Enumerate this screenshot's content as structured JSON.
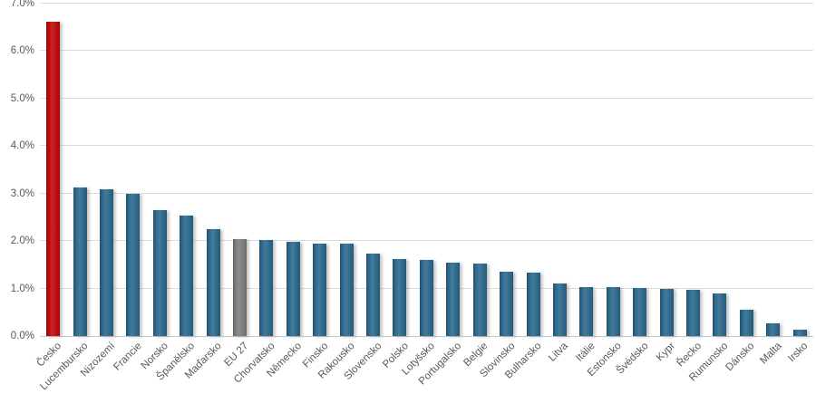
{
  "chart_data": {
    "type": "bar",
    "title": "",
    "xlabel": "",
    "ylabel": "",
    "categories": [
      "Česko",
      "Lucembursko",
      "Nizozemí",
      "Francie",
      "Norsko",
      "Španělsko",
      "Maďarsko",
      "EU 27",
      "Chorvatsko",
      "Německo",
      "Finsko",
      "Rakousko",
      "Slovensko",
      "Polsko",
      "Lotyšsko",
      "Portugalsko",
      "Belgie",
      "Slovinsko",
      "Bulharsko",
      "Litva",
      "Itálie",
      "Estonsko",
      "Švédsko",
      "Kypr",
      "Řecko",
      "Rumunsko",
      "Dánsko",
      "Malta",
      "Irsko"
    ],
    "values": [
      6.62,
      3.12,
      3.09,
      3.0,
      2.66,
      2.54,
      2.26,
      2.04,
      2.02,
      1.98,
      1.95,
      1.95,
      1.73,
      1.62,
      1.61,
      1.55,
      1.52,
      1.36,
      1.33,
      1.1,
      1.03,
      1.03,
      1.01,
      1.0,
      0.97,
      0.89,
      0.55,
      0.26,
      0.13
    ],
    "value_unit": "%",
    "ylim": [
      0,
      7
    ],
    "ytick_step": 1,
    "yticks": [
      "0.0%",
      "1.0%",
      "2.0%",
      "3.0%",
      "4.0%",
      "5.0%",
      "6.0%",
      "7.0%"
    ],
    "grid": true,
    "legend": false,
    "bar_color_default": "#2E6A8E",
    "bar_color_overrides": {
      "Česko": "#C00B0E",
      "EU 27": "#7F7F7F"
    },
    "gridline_color": "#DCDCDC",
    "axis_line_color": "#C6C6C6",
    "tick_label_color": "#595959"
  }
}
